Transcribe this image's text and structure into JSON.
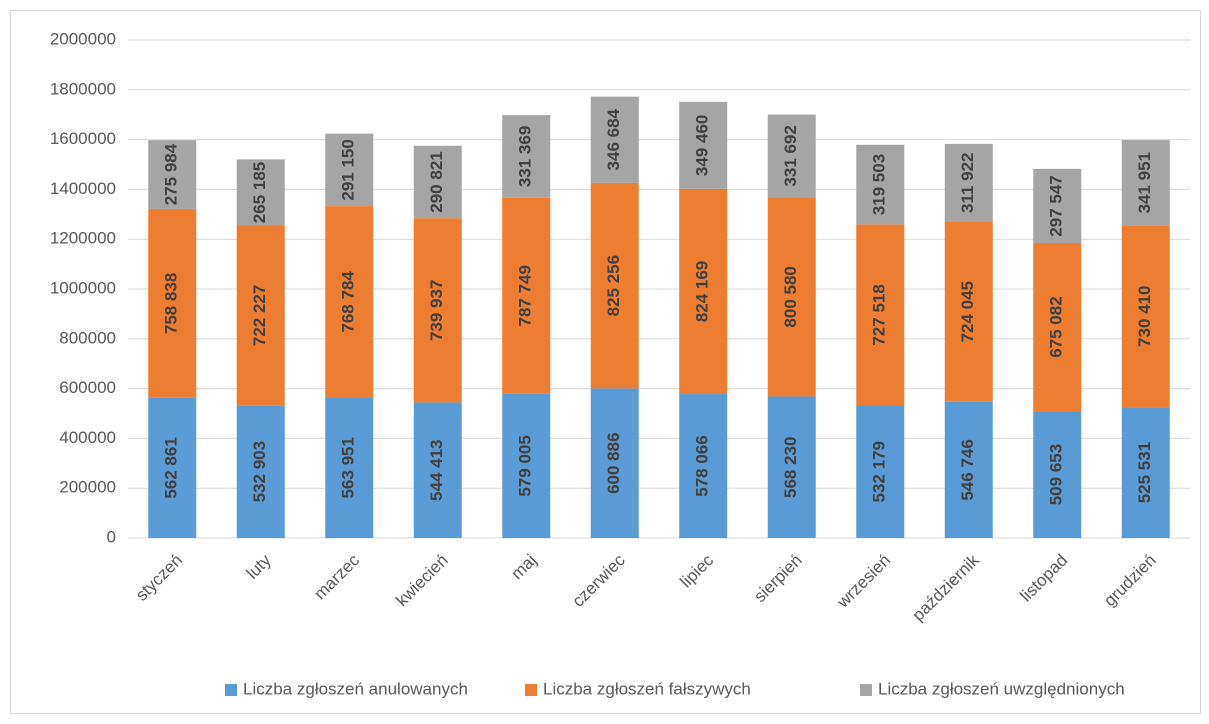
{
  "chart_data": {
    "type": "stacked_bar",
    "categories": [
      "styczeń",
      "luty",
      "marzec",
      "kwiecień",
      "maj",
      "czerwiec",
      "lipiec",
      "sierpień",
      "wrzesień",
      "październik",
      "listopad",
      "grudzień"
    ],
    "series": [
      {
        "name": "Liczba zgłoszeń anulowanych",
        "color": "#5b9bd5",
        "values": [
          562861,
          532903,
          563951,
          544413,
          579005,
          600886,
          578066,
          568230,
          532179,
          546746,
          509653,
          525531
        ],
        "value_labels": [
          "562 861",
          "532 903",
          "563 951",
          "544 413",
          "579 005",
          "600 886",
          "578 066",
          "568 230",
          "532 179",
          "546 746",
          "509 653",
          "525 531"
        ]
      },
      {
        "name": "Liczba zgłoszeń fałszywych",
        "color": "#ed7d31",
        "values": [
          758838,
          722227,
          768784,
          739937,
          787749,
          825256,
          824169,
          800580,
          727518,
          724045,
          675082,
          730410
        ],
        "value_labels": [
          "758 838",
          "722 227",
          "768 784",
          "739 937",
          "787 749",
          "825 256",
          "824 169",
          "800 580",
          "727 518",
          "724 045",
          "675 082",
          "730 410"
        ]
      },
      {
        "name": "Liczba zgłoszeń uwzględnionych",
        "color": "#a5a5a5",
        "values": [
          275984,
          265185,
          291150,
          290821,
          331369,
          346684,
          349460,
          331692,
          319503,
          311922,
          297547,
          341951
        ],
        "value_labels": [
          "275 984",
          "265 185",
          "291 150",
          "290 821",
          "331 369",
          "346 684",
          "349 460",
          "331 692",
          "319 503",
          "311 922",
          "297 547",
          "341 951"
        ]
      }
    ],
    "ylim": [
      0,
      2000000
    ],
    "yticks": [
      0,
      200000,
      400000,
      600000,
      800000,
      1000000,
      1200000,
      1400000,
      1600000,
      1800000,
      2000000
    ],
    "grid": true,
    "legend": "bottom"
  }
}
